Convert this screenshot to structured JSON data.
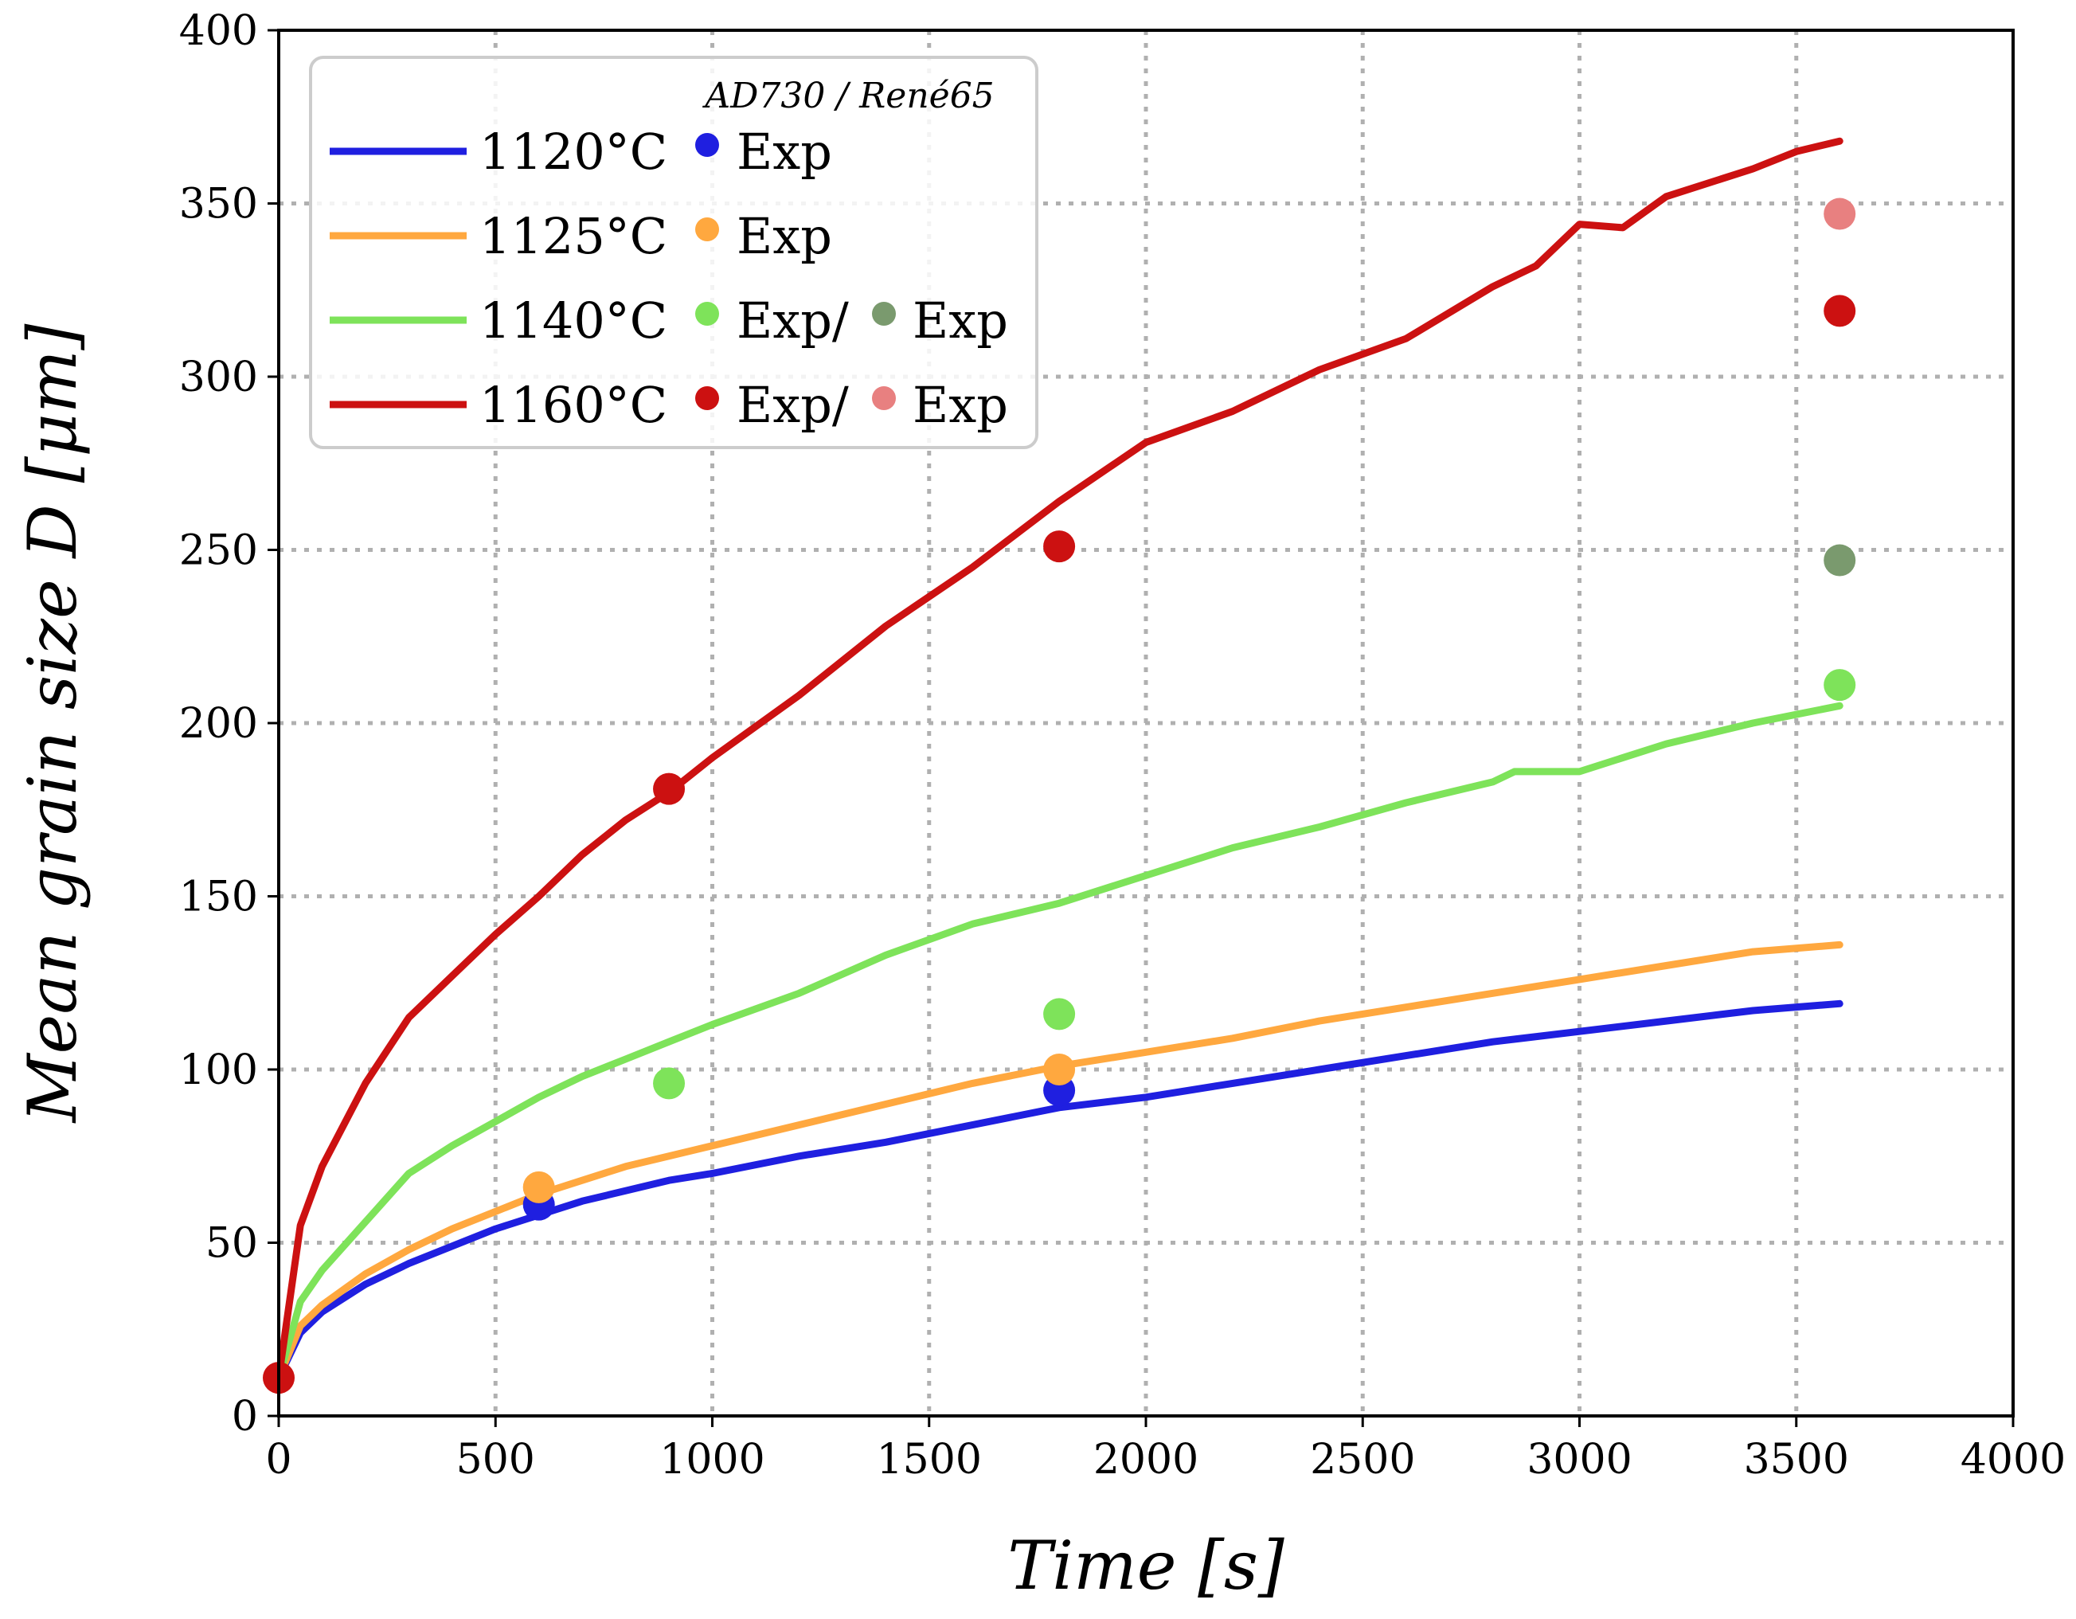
{
  "chart_data": {
    "type": "line",
    "title": "",
    "xlabel": "Time [s]",
    "ylabel": "Mean grain size D [μm]",
    "xlim": [
      0,
      4000
    ],
    "ylim": [
      0,
      400
    ],
    "xticks": [
      0,
      500,
      1000,
      1500,
      2000,
      2500,
      3000,
      3500,
      4000
    ],
    "yticks": [
      0,
      50,
      100,
      150,
      200,
      250,
      300,
      350,
      400
    ],
    "grid": true,
    "legend_title": "AD730 / René65",
    "legend_position": "top-left",
    "series": [
      {
        "name": "1120°C",
        "color": "#1f1fe0",
        "x": [
          0,
          50,
          100,
          200,
          300,
          400,
          500,
          600,
          700,
          800,
          900,
          1000,
          1200,
          1400,
          1600,
          1800,
          2000,
          2200,
          2400,
          2600,
          2800,
          3000,
          3200,
          3400,
          3600
        ],
        "y": [
          11,
          24,
          30,
          38,
          44,
          49,
          54,
          58,
          62,
          65,
          68,
          70,
          75,
          79,
          84,
          89,
          92,
          96,
          100,
          104,
          108,
          111,
          114,
          117,
          119
        ]
      },
      {
        "name": "1125°C",
        "color": "#ffa83f",
        "x": [
          0,
          50,
          100,
          200,
          300,
          400,
          500,
          600,
          700,
          800,
          900,
          1000,
          1200,
          1400,
          1600,
          1800,
          2000,
          2200,
          2400,
          2600,
          2800,
          3000,
          3200,
          3400,
          3600
        ],
        "y": [
          11,
          26,
          32,
          41,
          48,
          54,
          59,
          64,
          68,
          72,
          75,
          78,
          84,
          90,
          96,
          101,
          105,
          109,
          114,
          118,
          122,
          126,
          130,
          134,
          136
        ]
      },
      {
        "name": "1140°C",
        "color": "#7ee35a",
        "x": [
          0,
          50,
          100,
          200,
          300,
          400,
          500,
          600,
          700,
          800,
          900,
          1000,
          1200,
          1400,
          1600,
          1800,
          2000,
          2200,
          2400,
          2600,
          2800,
          2850,
          3000,
          3200,
          3400,
          3600
        ],
        "y": [
          11,
          33,
          42,
          56,
          70,
          78,
          85,
          92,
          98,
          103,
          108,
          113,
          122,
          133,
          142,
          148,
          156,
          164,
          170,
          177,
          183,
          186,
          186,
          194,
          200,
          205
        ]
      },
      {
        "name": "1160°C",
        "color": "#cc1111",
        "x": [
          0,
          50,
          100,
          200,
          300,
          400,
          500,
          600,
          700,
          800,
          900,
          1000,
          1200,
          1400,
          1600,
          1800,
          2000,
          2200,
          2400,
          2600,
          2800,
          2900,
          3000,
          3100,
          3200,
          3400,
          3500,
          3600
        ],
        "y": [
          11,
          55,
          72,
          96,
          115,
          127,
          139,
          150,
          162,
          172,
          180,
          190,
          208,
          228,
          245,
          264,
          281,
          290,
          302,
          311,
          326,
          332,
          344,
          343,
          352,
          360,
          365,
          368
        ]
      }
    ],
    "exp_points": [
      {
        "series": "1120°C",
        "label": "Exp",
        "color": "#1f1fe0",
        "x": [
          600,
          1800
        ],
        "y": [
          61,
          94
        ]
      },
      {
        "series": "1125°C",
        "label": "Exp",
        "color": "#ffa83f",
        "x": [
          600,
          1800
        ],
        "y": [
          66,
          100
        ]
      },
      {
        "series": "1140°C",
        "label": "Exp",
        "color": "#7ee35a",
        "x": [
          900,
          1800,
          3600
        ],
        "y": [
          96,
          116,
          211
        ]
      },
      {
        "series": "1140°C",
        "label": "Exp",
        "color": "#7a9a6e",
        "x": [
          3600
        ],
        "y": [
          247
        ]
      },
      {
        "series": "1160°C",
        "label": "Exp",
        "color": "#cc1111",
        "x": [
          0,
          900,
          1800,
          3600
        ],
        "y": [
          11,
          181,
          251,
          319
        ]
      },
      {
        "series": "1160°C",
        "label": "Exp",
        "color": "#e88080",
        "x": [
          3600
        ],
        "y": [
          347
        ]
      }
    ]
  },
  "legend": {
    "title": "AD730 / René65",
    "rows": [
      {
        "line_label": "1120°C",
        "line_color": "#1f1fe0",
        "marker1_color": "#1f1fe0",
        "marker_text": "Exp",
        "marker2_color": "",
        "marker2_text": ""
      },
      {
        "line_label": "1125°C",
        "line_color": "#ffa83f",
        "marker1_color": "#ffa83f",
        "marker_text": "Exp",
        "marker2_color": "",
        "marker2_text": ""
      },
      {
        "line_label": "1140°C",
        "line_color": "#7ee35a",
        "marker1_color": "#7ee35a",
        "marker_text": "Exp/",
        "marker2_color": "#7a9a6e",
        "marker2_text": "Exp"
      },
      {
        "line_label": "1160°C",
        "line_color": "#cc1111",
        "marker1_color": "#cc1111",
        "marker_text": "Exp/",
        "marker2_color": "#e88080",
        "marker2_text": "Exp"
      }
    ]
  }
}
